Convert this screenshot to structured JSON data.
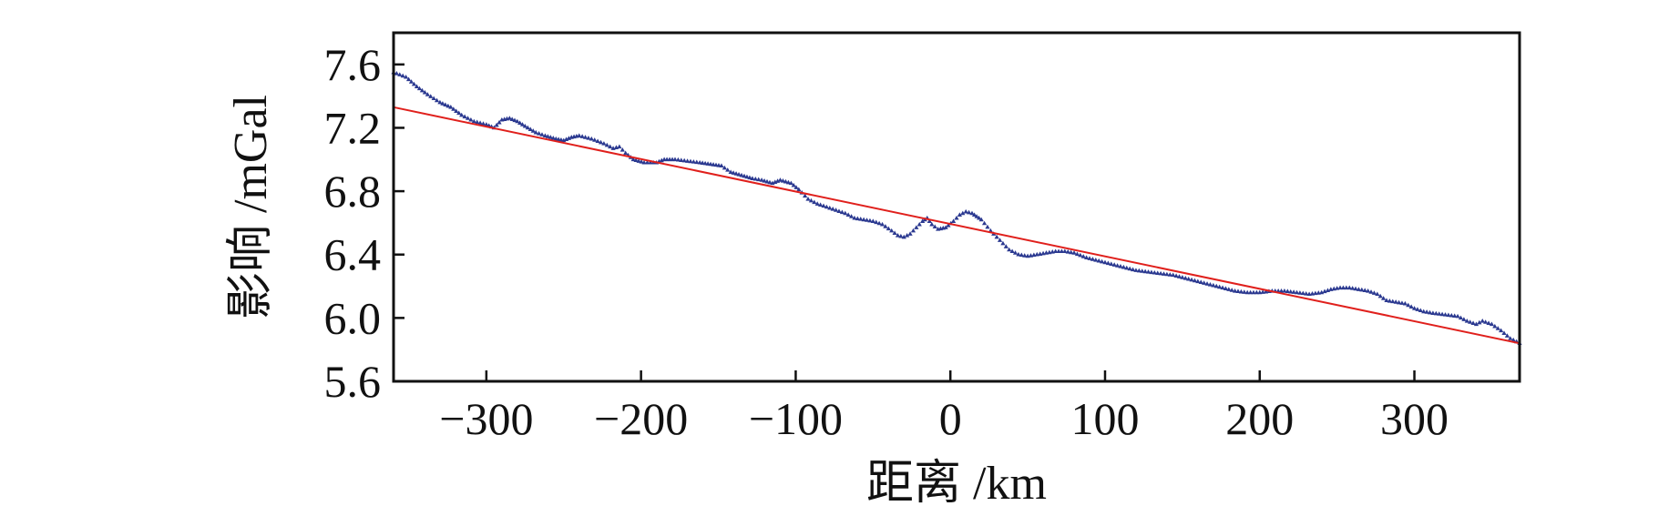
{
  "chart_data": {
    "type": "line",
    "title": "",
    "xlabel": "距离 /km",
    "ylabel": "影响 /mGal",
    "xlim": [
      -360,
      368
    ],
    "ylim": [
      5.6,
      7.8
    ],
    "xticks": [
      -300,
      -200,
      -100,
      0,
      100,
      200,
      300
    ],
    "xtick_labels": [
      "−300",
      "−200",
      "−100",
      "0",
      "100",
      "200",
      "300"
    ],
    "yticks": [
      5.6,
      6.0,
      6.4,
      6.8,
      7.2,
      7.6
    ],
    "ytick_labels": [
      "5.6",
      "6.0",
      "6.4",
      "6.8",
      "7.2",
      "7.6"
    ],
    "grid": false,
    "legend": "none",
    "series": [
      {
        "style": "markers",
        "color": "#2b3990",
        "points": [
          [
            -360,
            7.55
          ],
          [
            -352,
            7.52
          ],
          [
            -345,
            7.46
          ],
          [
            -338,
            7.41
          ],
          [
            -330,
            7.36
          ],
          [
            -323,
            7.33
          ],
          [
            -316,
            7.28
          ],
          [
            -308,
            7.24
          ],
          [
            -300,
            7.22
          ],
          [
            -295,
            7.2
          ],
          [
            -290,
            7.25
          ],
          [
            -285,
            7.26
          ],
          [
            -280,
            7.24
          ],
          [
            -275,
            7.21
          ],
          [
            -268,
            7.17
          ],
          [
            -262,
            7.15
          ],
          [
            -255,
            7.13
          ],
          [
            -250,
            7.12
          ],
          [
            -245,
            7.14
          ],
          [
            -240,
            7.15
          ],
          [
            -232,
            7.13
          ],
          [
            -224,
            7.1
          ],
          [
            -218,
            7.07
          ],
          [
            -214,
            7.08
          ],
          [
            -210,
            7.04
          ],
          [
            -205,
            7.0
          ],
          [
            -198,
            6.98
          ],
          [
            -190,
            6.98
          ],
          [
            -185,
            7.0
          ],
          [
            -178,
            7.0
          ],
          [
            -170,
            6.99
          ],
          [
            -162,
            6.98
          ],
          [
            -155,
            6.97
          ],
          [
            -148,
            6.96
          ],
          [
            -142,
            6.92
          ],
          [
            -135,
            6.9
          ],
          [
            -128,
            6.88
          ],
          [
            -122,
            6.87
          ],
          [
            -115,
            6.85
          ],
          [
            -110,
            6.87
          ],
          [
            -103,
            6.85
          ],
          [
            -98,
            6.81
          ],
          [
            -92,
            6.75
          ],
          [
            -86,
            6.72
          ],
          [
            -80,
            6.7
          ],
          [
            -74,
            6.68
          ],
          [
            -68,
            6.66
          ],
          [
            -62,
            6.63
          ],
          [
            -56,
            6.62
          ],
          [
            -50,
            6.61
          ],
          [
            -44,
            6.59
          ],
          [
            -38,
            6.55
          ],
          [
            -34,
            6.52
          ],
          [
            -30,
            6.51
          ],
          [
            -26,
            6.53
          ],
          [
            -22,
            6.57
          ],
          [
            -18,
            6.61
          ],
          [
            -15,
            6.63
          ],
          [
            -12,
            6.59
          ],
          [
            -8,
            6.56
          ],
          [
            -3,
            6.57
          ],
          [
            2,
            6.61
          ],
          [
            6,
            6.65
          ],
          [
            10,
            6.67
          ],
          [
            14,
            6.66
          ],
          [
            17,
            6.64
          ],
          [
            20,
            6.62
          ],
          [
            26,
            6.55
          ],
          [
            32,
            6.49
          ],
          [
            38,
            6.43
          ],
          [
            44,
            6.4
          ],
          [
            50,
            6.39
          ],
          [
            56,
            6.4
          ],
          [
            62,
            6.41
          ],
          [
            68,
            6.42
          ],
          [
            74,
            6.42
          ],
          [
            80,
            6.41
          ],
          [
            88,
            6.38
          ],
          [
            96,
            6.36
          ],
          [
            104,
            6.34
          ],
          [
            112,
            6.32
          ],
          [
            120,
            6.3
          ],
          [
            128,
            6.29
          ],
          [
            136,
            6.28
          ],
          [
            144,
            6.27
          ],
          [
            152,
            6.25
          ],
          [
            160,
            6.23
          ],
          [
            168,
            6.21
          ],
          [
            176,
            6.19
          ],
          [
            184,
            6.17
          ],
          [
            192,
            6.16
          ],
          [
            200,
            6.16
          ],
          [
            208,
            6.17
          ],
          [
            216,
            6.17
          ],
          [
            224,
            6.16
          ],
          [
            232,
            6.15
          ],
          [
            240,
            6.16
          ],
          [
            246,
            6.18
          ],
          [
            252,
            6.19
          ],
          [
            258,
            6.19
          ],
          [
            264,
            6.18
          ],
          [
            270,
            6.17
          ],
          [
            276,
            6.15
          ],
          [
            282,
            6.11
          ],
          [
            288,
            6.1
          ],
          [
            294,
            6.09
          ],
          [
            300,
            6.06
          ],
          [
            306,
            6.04
          ],
          [
            312,
            6.03
          ],
          [
            320,
            6.02
          ],
          [
            328,
            6.01
          ],
          [
            334,
            5.98
          ],
          [
            340,
            5.96
          ],
          [
            344,
            5.98
          ],
          [
            350,
            5.96
          ],
          [
            356,
            5.92
          ],
          [
            362,
            5.87
          ],
          [
            368,
            5.84
          ]
        ]
      },
      {
        "style": "line",
        "color": "#e0201c",
        "points": [
          [
            -360,
            7.33
          ],
          [
            368,
            5.84
          ]
        ]
      }
    ]
  }
}
